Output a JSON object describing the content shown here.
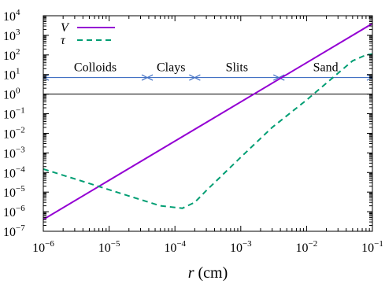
{
  "chart_data": {
    "type": "line",
    "xlabel_var": "r",
    "xlabel_unit": " (cm)",
    "x_scale": "log",
    "y_scale": "log",
    "xlim": [
      1e-06,
      0.1
    ],
    "ylim": [
      1e-07,
      10000
    ],
    "x_ticks": [
      {
        "base": "10",
        "exp": "−6",
        "value": 1e-06
      },
      {
        "base": "10",
        "exp": "−5",
        "value": 1e-05
      },
      {
        "base": "10",
        "exp": "−4",
        "value": 0.0001
      },
      {
        "base": "10",
        "exp": "−3",
        "value": 0.001
      },
      {
        "base": "10",
        "exp": "−2",
        "value": 0.01
      },
      {
        "base": "10",
        "exp": "−1",
        "value": 0.1
      }
    ],
    "y_ticks": [
      {
        "base": "10",
        "exp": "4",
        "value": 10000.0
      },
      {
        "base": "10",
        "exp": "3",
        "value": 1000.0
      },
      {
        "base": "10",
        "exp": "2",
        "value": 100.0
      },
      {
        "base": "10",
        "exp": "1",
        "value": 10.0
      },
      {
        "base": "10",
        "exp": "0",
        "value": 1.0
      },
      {
        "base": "10",
        "exp": "−1",
        "value": 0.1
      },
      {
        "base": "10",
        "exp": "−2",
        "value": 0.01
      },
      {
        "base": "10",
        "exp": "−3",
        "value": 0.001
      },
      {
        "base": "10",
        "exp": "−4",
        "value": 0.0001
      },
      {
        "base": "10",
        "exp": "−5",
        "value": 1e-05
      },
      {
        "base": "10",
        "exp": "−6",
        "value": 1e-06
      },
      {
        "base": "10",
        "exp": "−7",
        "value": 1e-07
      }
    ],
    "reference_line_y": 1,
    "series": [
      {
        "name": "V",
        "style": "solid",
        "color": "#9400d3",
        "points": [
          [
            1e-06,
            4e-07
          ],
          [
            0.1,
            4000
          ]
        ]
      },
      {
        "name": "τ",
        "style": "dashed",
        "color": "#009e73",
        "points": [
          [
            1e-06,
            0.00015
          ],
          [
            4e-06,
            3.5e-05
          ],
          [
            1.6e-05,
            8e-06
          ],
          [
            6e-05,
            2e-06
          ],
          [
            0.00013,
            1.5e-06
          ],
          [
            0.0002,
            3e-06
          ],
          [
            0.0003,
            1.2e-05
          ],
          [
            0.001,
            0.0006
          ],
          [
            0.003,
            0.02
          ],
          [
            0.01,
            0.5
          ],
          [
            0.05,
            50
          ],
          [
            0.08,
            100
          ],
          [
            0.1,
            110
          ]
        ]
      }
    ],
    "bands": {
      "color": "#4472c4",
      "y": 7,
      "ranges": [
        {
          "label": "Colloids",
          "from": 1e-06,
          "to": 3.8e-05
        },
        {
          "label": "Clays",
          "from": 3.8e-05,
          "to": 0.0002
        },
        {
          "label": "Slits",
          "from": 0.0002,
          "to": 0.0038
        },
        {
          "label": "Sand",
          "from": 0.0038,
          "to": 0.1
        }
      ]
    },
    "legend_position": "top-left",
    "grid": false
  }
}
